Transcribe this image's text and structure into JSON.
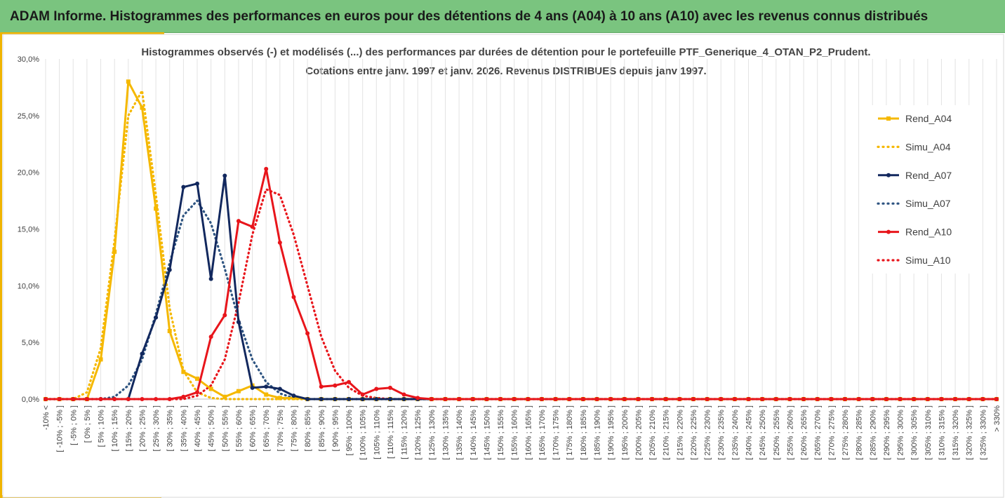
{
  "page": {
    "title": "ADAM Informe. Histogrammes des performances en euros pour des détentions de 4 ans (A04) à 10 ans (A10) avec les revenus connus distribués"
  },
  "colors": {
    "banner": "#7ac47f",
    "frame": "#f0b400",
    "A04": "#f5b800",
    "A07": "#12285e",
    "A10": "#e8151b",
    "simu_A07": "#2e5481"
  },
  "chart_data": {
    "type": "line",
    "title": "Histogrammes observés (-) et modélisés (...) des performances par durées de détention pour le portefeuille PTF_Generique_4_OTAN_P2_Prudent.",
    "subtitle": "Cotations entre janv. 1997 et janv. 2026. Revenus DISTRIBUES depuis janv 1997.",
    "ylim": [
      0,
      30
    ],
    "yticks": [
      "0,0%",
      "5,0%",
      "10,0%",
      "15,0%",
      "20,0%",
      "25,0%",
      "30,0%"
    ],
    "ytick_values": [
      0,
      5,
      10,
      15,
      20,
      25,
      30
    ],
    "legend_position": "right",
    "categories": [
      "-10% <",
      "[ -10% ; -5% ]",
      "[ -5% ; 0% ]",
      "[ 0% ; 5% ]",
      "[ 5% ; 10% ]",
      "[ 10% ; 15% ]",
      "[ 15% ; 20% ]",
      "[ 20% ; 25% ]",
      "[ 25% ; 30% ]",
      "[ 30% ; 35% ]",
      "[ 35% ; 40% ]",
      "[ 40% ; 45% ]",
      "[ 45% ; 50% ]",
      "[ 50% ; 55% ]",
      "[ 55% ; 60% ]",
      "[ 60% ; 65% ]",
      "[ 65% ; 70% ]",
      "[ 70% ; 75% ]",
      "[ 75% ; 80% ]",
      "[ 80% ; 85% ]",
      "[ 85% ; 90% ]",
      "[ 90% ; 95% ]",
      "[ 95% ; 100% ]",
      "[ 100% ; 105% ]",
      "[ 105% ; 110% ]",
      "[ 110% ; 115% ]",
      "[ 115% ; 120% ]",
      "[ 120% ; 125% ]",
      "[ 125% ; 130% ]",
      "[ 130% ; 135% ]",
      "[ 135% ; 140% ]",
      "[ 140% ; 145% ]",
      "[ 145% ; 150% ]",
      "[ 150% ; 155% ]",
      "[ 155% ; 160% ]",
      "[ 160% ; 165% ]",
      "[ 165% ; 170% ]",
      "[ 170% ; 175% ]",
      "[ 175% ; 180% ]",
      "[ 180% ; 185% ]",
      "[ 185% ; 190% ]",
      "[ 190% ; 195% ]",
      "[ 195% ; 200% ]",
      "[ 200% ; 205% ]",
      "[ 205% ; 210% ]",
      "[ 210% ; 215% ]",
      "[ 215% ; 220% ]",
      "[ 220% ; 225% ]",
      "[ 225% ; 230% ]",
      "[ 230% ; 235% ]",
      "[ 235% ; 240% ]",
      "[ 240% ; 245% ]",
      "[ 245% ; 250% ]",
      "[ 250% ; 255% ]",
      "[ 255% ; 260% ]",
      "[ 260% ; 265% ]",
      "[ 265% ; 270% ]",
      "[ 270% ; 275% ]",
      "[ 275% ; 280% ]",
      "[ 280% ; 285% ]",
      "[ 285% ; 290% ]",
      "[ 290% ; 295% ]",
      "[ 295% ; 300% ]",
      "[ 300% ; 305% ]",
      "[ 305% ; 310% ]",
      "[ 310% ; 315% ]",
      "[ 315% ; 320% ]",
      "[ 320% ; 325% ]",
      "[ 325% ; 330% ]",
      "> 330%"
    ],
    "series": [
      {
        "name": "Rend_A04",
        "style": "solid",
        "marker": "square",
        "color": "#f5b800",
        "values": [
          0,
          0,
          0,
          0,
          3.5,
          13,
          28,
          25.7,
          16.8,
          6,
          2.4,
          1.8,
          0.9,
          0.2,
          0.7,
          1.2,
          0.4,
          0.1,
          0.1,
          0,
          0,
          0,
          0,
          0,
          0,
          0,
          0,
          0,
          0,
          0,
          0,
          0,
          0,
          0,
          0,
          0,
          0,
          0,
          0,
          0,
          0,
          0,
          0,
          0,
          0,
          0,
          0,
          0,
          0,
          0,
          0,
          0,
          0,
          0,
          0,
          0,
          0,
          0,
          0,
          0,
          0,
          0,
          0,
          0,
          0,
          0,
          0,
          0,
          0,
          0
        ]
      },
      {
        "name": "Simu_A04",
        "style": "dotted",
        "marker": "none",
        "color": "#f5b800",
        "values": [
          0,
          0,
          0,
          0.6,
          4.5,
          14,
          25,
          27.2,
          18,
          8,
          2.5,
          0.6,
          0.1,
          0,
          0,
          0,
          0,
          0,
          0,
          0,
          0,
          0,
          0,
          0,
          0,
          0,
          0,
          0,
          0,
          0,
          0,
          0,
          0,
          0,
          0,
          0,
          0,
          0,
          0,
          0,
          0,
          0,
          0,
          0,
          0,
          0,
          0,
          0,
          0,
          0,
          0,
          0,
          0,
          0,
          0,
          0,
          0,
          0,
          0,
          0,
          0,
          0,
          0,
          0,
          0,
          0,
          0,
          0,
          0,
          0
        ]
      },
      {
        "name": "Rend_A07",
        "style": "solid",
        "marker": "circle",
        "color": "#12285e",
        "values": [
          0,
          0,
          0,
          0,
          0,
          0,
          0,
          4,
          7.2,
          11.4,
          18.7,
          19,
          10.6,
          19.7,
          6.8,
          1,
          1.1,
          0.9,
          0.3,
          0,
          0,
          0,
          0,
          0,
          0,
          0,
          0,
          0,
          0,
          0,
          0,
          0,
          0,
          0,
          0,
          0,
          0,
          0,
          0,
          0,
          0,
          0,
          0,
          0,
          0,
          0,
          0,
          0,
          0,
          0,
          0,
          0,
          0,
          0,
          0,
          0,
          0,
          0,
          0,
          0,
          0,
          0,
          0,
          0,
          0,
          0,
          0,
          0,
          0,
          0
        ]
      },
      {
        "name": "Simu_A07",
        "style": "dotted",
        "marker": "none",
        "color": "#2e5481",
        "values": [
          0,
          0,
          0,
          0,
          0,
          0.2,
          1.2,
          3.5,
          7.5,
          12,
          16.2,
          17.5,
          15.5,
          11.5,
          7,
          3.5,
          1.5,
          0.5,
          0.1,
          0,
          0,
          0,
          0,
          0,
          0,
          0,
          0,
          0,
          0,
          0,
          0,
          0,
          0,
          0,
          0,
          0,
          0,
          0,
          0,
          0,
          0,
          0,
          0,
          0,
          0,
          0,
          0,
          0,
          0,
          0,
          0,
          0,
          0,
          0,
          0,
          0,
          0,
          0,
          0,
          0,
          0,
          0,
          0,
          0,
          0,
          0,
          0,
          0,
          0,
          0
        ]
      },
      {
        "name": "Rend_A10",
        "style": "solid",
        "marker": "circle",
        "color": "#e8151b",
        "values": [
          0,
          0,
          0,
          0,
          0,
          0,
          0,
          0,
          0,
          0,
          0.2,
          0.6,
          5.5,
          7.4,
          15.7,
          15.2,
          20.3,
          13.8,
          9,
          5.8,
          1.1,
          1.2,
          1.5,
          0.4,
          0.9,
          1,
          0.4,
          0.1,
          0,
          0,
          0,
          0,
          0,
          0,
          0,
          0,
          0,
          0,
          0,
          0,
          0,
          0,
          0,
          0,
          0,
          0,
          0,
          0,
          0,
          0,
          0,
          0,
          0,
          0,
          0,
          0,
          0,
          0,
          0,
          0,
          0,
          0,
          0,
          0,
          0,
          0,
          0,
          0,
          0,
          0
        ]
      },
      {
        "name": "Simu_A10",
        "style": "dotted",
        "marker": "none",
        "color": "#e8151b",
        "values": [
          0,
          0,
          0,
          0,
          0,
          0,
          0,
          0,
          0,
          0,
          0,
          0.3,
          1.2,
          3.5,
          8.5,
          14.5,
          18.5,
          18,
          14.5,
          10,
          5.5,
          2.5,
          1,
          0.3,
          0.1,
          0,
          0,
          0,
          0,
          0,
          0,
          0,
          0,
          0,
          0,
          0,
          0,
          0,
          0,
          0,
          0,
          0,
          0,
          0,
          0,
          0,
          0,
          0,
          0,
          0,
          0,
          0,
          0,
          0,
          0,
          0,
          0,
          0,
          0,
          0,
          0,
          0,
          0,
          0,
          0,
          0,
          0,
          0,
          0,
          0
        ]
      }
    ]
  }
}
